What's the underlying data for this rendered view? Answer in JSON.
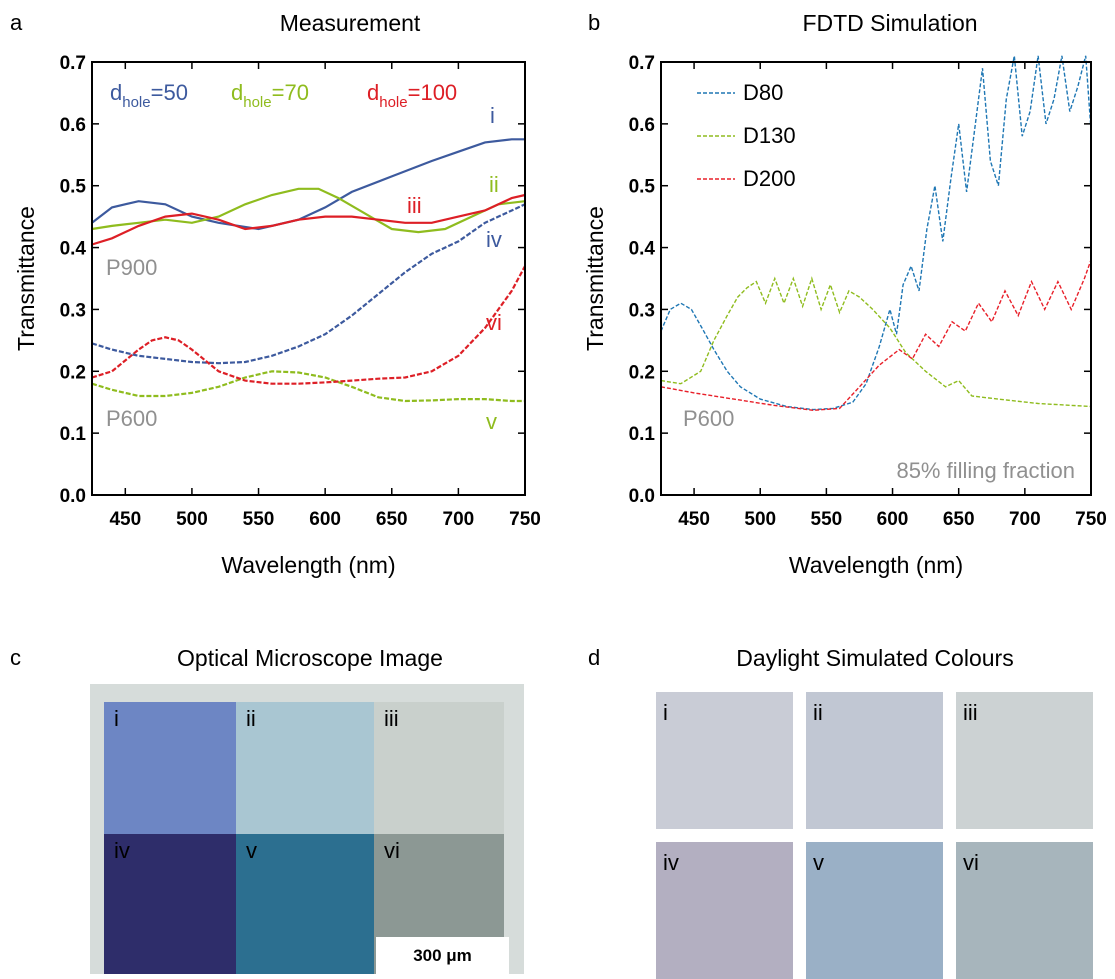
{
  "panels": {
    "a": {
      "letter": "a",
      "title": "Measurement"
    },
    "b": {
      "letter": "b",
      "title": "FDTD Simulation"
    },
    "c": {
      "letter": "c",
      "title": "Optical Microscope Image"
    },
    "d": {
      "letter": "d",
      "title": "Daylight Simulated Colours"
    }
  },
  "chart_data": [
    {
      "type": "line",
      "panel": "a",
      "title": "Measurement",
      "xlabel": "Wavelength (nm)",
      "ylabel": "Transmittance",
      "xlim": [
        425,
        750
      ],
      "ylim": [
        0.0,
        0.7
      ],
      "xticks": [
        450,
        500,
        550,
        600,
        650,
        700,
        750
      ],
      "yticks": [
        0.0,
        0.1,
        0.2,
        0.3,
        0.4,
        0.5,
        0.6,
        0.7
      ],
      "legend": [
        {
          "main": "d",
          "sub": "hole",
          "value": "=50",
          "color": "#3d5a9e"
        },
        {
          "main": "d",
          "sub": "hole",
          "value": "=70",
          "color": "#8fbc1e"
        },
        {
          "main": "d",
          "sub": "hole",
          "value": "=100",
          "color": "#dd1f26"
        }
      ],
      "annotations": {
        "p900": "P900",
        "p600": "P600"
      },
      "series": [
        {
          "label": "i",
          "color": "#3d5a9e",
          "dash": false,
          "x": [
            425,
            440,
            460,
            480,
            500,
            520,
            550,
            580,
            600,
            620,
            650,
            680,
            700,
            720,
            740,
            750
          ],
          "y": [
            0.44,
            0.465,
            0.475,
            0.47,
            0.45,
            0.44,
            0.43,
            0.445,
            0.465,
            0.49,
            0.515,
            0.54,
            0.555,
            0.57,
            0.575,
            0.575
          ]
        },
        {
          "label": "ii",
          "color": "#8fbc1e",
          "dash": false,
          "x": [
            425,
            440,
            460,
            480,
            500,
            520,
            540,
            560,
            580,
            595,
            610,
            630,
            650,
            670,
            690,
            710,
            730,
            750
          ],
          "y": [
            0.43,
            0.435,
            0.44,
            0.445,
            0.44,
            0.45,
            0.47,
            0.485,
            0.495,
            0.495,
            0.48,
            0.455,
            0.43,
            0.425,
            0.43,
            0.45,
            0.47,
            0.475
          ]
        },
        {
          "label": "iii",
          "color": "#dd1f26",
          "dash": false,
          "x": [
            425,
            440,
            460,
            480,
            500,
            520,
            540,
            560,
            580,
            600,
            620,
            640,
            660,
            680,
            700,
            720,
            740,
            750
          ],
          "y": [
            0.405,
            0.415,
            0.435,
            0.45,
            0.455,
            0.445,
            0.43,
            0.435,
            0.445,
            0.45,
            0.45,
            0.445,
            0.44,
            0.44,
            0.45,
            0.46,
            0.48,
            0.485
          ]
        },
        {
          "label": "iv",
          "color": "#3d5a9e",
          "dash": true,
          "x": [
            425,
            440,
            460,
            480,
            500,
            520,
            540,
            560,
            580,
            600,
            620,
            640,
            660,
            680,
            700,
            720,
            740,
            750
          ],
          "y": [
            0.245,
            0.235,
            0.225,
            0.22,
            0.215,
            0.213,
            0.215,
            0.225,
            0.24,
            0.26,
            0.29,
            0.325,
            0.36,
            0.39,
            0.41,
            0.44,
            0.46,
            0.47
          ]
        },
        {
          "label": "v",
          "color": "#8fbc1e",
          "dash": true,
          "x": [
            425,
            440,
            460,
            480,
            500,
            520,
            540,
            560,
            580,
            600,
            620,
            640,
            660,
            680,
            700,
            720,
            740,
            750
          ],
          "y": [
            0.18,
            0.17,
            0.16,
            0.16,
            0.165,
            0.175,
            0.19,
            0.2,
            0.198,
            0.19,
            0.175,
            0.158,
            0.152,
            0.153,
            0.155,
            0.155,
            0.152,
            0.152
          ]
        },
        {
          "label": "vi",
          "color": "#dd1f26",
          "dash": true,
          "x": [
            425,
            440,
            460,
            470,
            480,
            490,
            500,
            520,
            540,
            560,
            580,
            600,
            620,
            640,
            660,
            680,
            700,
            720,
            740,
            750
          ],
          "y": [
            0.19,
            0.2,
            0.235,
            0.25,
            0.255,
            0.25,
            0.235,
            0.2,
            0.185,
            0.18,
            0.18,
            0.182,
            0.185,
            0.188,
            0.19,
            0.2,
            0.225,
            0.27,
            0.33,
            0.37
          ]
        }
      ],
      "series_label_colors": {
        "i": "#3d5a9e",
        "ii": "#8fbc1e",
        "iii": "#dd1f26",
        "iv": "#3d5a9e",
        "v": "#8fbc1e",
        "vi": "#dd1f26"
      }
    },
    {
      "type": "line",
      "panel": "b",
      "title": "FDTD Simulation",
      "xlabel": "Wavelength (nm)",
      "ylabel": "Transmittance",
      "xlim": [
        425,
        750
      ],
      "ylim": [
        0.0,
        0.7
      ],
      "xticks": [
        450,
        500,
        550,
        600,
        650,
        700,
        750
      ],
      "yticks": [
        0.0,
        0.1,
        0.2,
        0.3,
        0.4,
        0.5,
        0.6,
        0.7
      ],
      "legend_position": "top-left",
      "annotations": {
        "p600": "P600",
        "filling": "85% filling fraction"
      },
      "series": [
        {
          "name": "D80",
          "color": "#1f77b4",
          "dash": true,
          "x": [
            425,
            432,
            440,
            448,
            456,
            465,
            475,
            485,
            500,
            520,
            540,
            555,
            570,
            580,
            590,
            598,
            603,
            608,
            614,
            620,
            626,
            632,
            638,
            644,
            650,
            656,
            662,
            668,
            674,
            680,
            686,
            692,
            698,
            704,
            710,
            716,
            722,
            728,
            734,
            740,
            746,
            750
          ],
          "y": [
            0.265,
            0.3,
            0.31,
            0.3,
            0.27,
            0.235,
            0.2,
            0.175,
            0.155,
            0.143,
            0.138,
            0.14,
            0.15,
            0.18,
            0.24,
            0.3,
            0.26,
            0.34,
            0.37,
            0.33,
            0.43,
            0.5,
            0.41,
            0.51,
            0.6,
            0.49,
            0.59,
            0.69,
            0.54,
            0.5,
            0.64,
            0.71,
            0.58,
            0.62,
            0.71,
            0.6,
            0.64,
            0.71,
            0.62,
            0.66,
            0.71,
            0.59
          ]
        },
        {
          "name": "D130",
          "color": "#8fbc1e",
          "dash": true,
          "x": [
            425,
            440,
            455,
            465,
            475,
            483,
            490,
            497,
            504,
            511,
            518,
            525,
            532,
            539,
            546,
            553,
            560,
            567,
            575,
            585,
            598,
            610,
            625,
            640,
            650,
            660,
            680,
            710,
            750
          ],
          "y": [
            0.185,
            0.18,
            0.2,
            0.25,
            0.29,
            0.32,
            0.335,
            0.345,
            0.31,
            0.35,
            0.31,
            0.35,
            0.305,
            0.35,
            0.3,
            0.34,
            0.295,
            0.33,
            0.32,
            0.3,
            0.27,
            0.23,
            0.2,
            0.175,
            0.185,
            0.16,
            0.155,
            0.148,
            0.143
          ]
        },
        {
          "name": "D200",
          "color": "#e8202a",
          "dash": true,
          "x": [
            425,
            450,
            480,
            510,
            540,
            560,
            575,
            590,
            605,
            615,
            625,
            635,
            645,
            655,
            665,
            675,
            685,
            695,
            705,
            715,
            725,
            735,
            745,
            750
          ],
          "y": [
            0.175,
            0.165,
            0.155,
            0.145,
            0.137,
            0.14,
            0.175,
            0.21,
            0.235,
            0.22,
            0.26,
            0.24,
            0.28,
            0.265,
            0.31,
            0.28,
            0.33,
            0.29,
            0.345,
            0.3,
            0.345,
            0.3,
            0.35,
            0.38
          ]
        }
      ]
    }
  ],
  "micro": {
    "tiles": [
      {
        "label": "i",
        "color": "#6d86c4"
      },
      {
        "label": "ii",
        "color": "#a9c6d2"
      },
      {
        "label": "iii",
        "color": "#c9d0cc"
      },
      {
        "label": "iv",
        "color": "#2e2d6a"
      },
      {
        "label": "v",
        "color": "#2c6f90"
      },
      {
        "label": "vi",
        "color": "#8c9894"
      }
    ],
    "border_color": "#d6dcda",
    "scalebar": "300 μm"
  },
  "swatches": [
    {
      "label": "i",
      "color": "#c9ccd6"
    },
    {
      "label": "ii",
      "color": "#c1c7d3"
    },
    {
      "label": "iii",
      "color": "#ccd2d3"
    },
    {
      "label": "iv",
      "color": "#b3afc1"
    },
    {
      "label": "v",
      "color": "#9ab0c6"
    },
    {
      "label": "vi",
      "color": "#a7b5bc"
    }
  ]
}
